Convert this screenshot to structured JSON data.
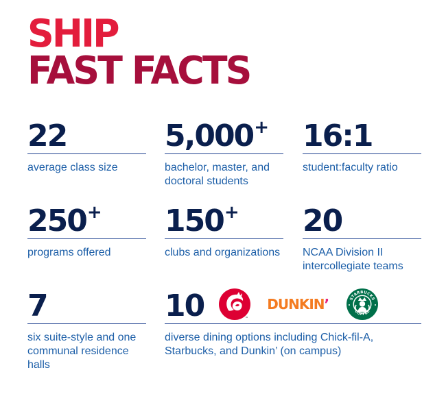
{
  "headline": {
    "line1": "SHIP",
    "line2": "FAST FACTS"
  },
  "facts": [
    {
      "number": "22",
      "plus": "",
      "description": "average class size"
    },
    {
      "number": "5,000",
      "plus": "+",
      "description": "bachelor, master, and doctoral students"
    },
    {
      "number": "16:1",
      "plus": "",
      "description": "student:faculty ratio"
    },
    {
      "number": "250",
      "plus": "+",
      "description": "programs offered"
    },
    {
      "number": "150",
      "plus": "+",
      "description": "clubs and organizations"
    },
    {
      "number": "20",
      "plus": "",
      "description": "NCAA Division II intercollegiate teams"
    },
    {
      "number": "7",
      "plus": "",
      "description": "six suite-style and one communal residence halls"
    }
  ],
  "dining": {
    "number": "10",
    "description": "diverse dining options including Chick-fil-A, Starbucks, and Dunkin’ (on campus)",
    "logos": {
      "chick": "chick-fil-a-logo",
      "dunkin_text": "DUNKIN",
      "dunkin_apostrophe": "’",
      "starbucks_top": "STARBUCKS",
      "starbucks_bottom": "COFFEE"
    }
  },
  "colors": {
    "headline_red": "#e31d3c",
    "headline_crimson": "#a60f3c",
    "number_navy": "#0a1f4d",
    "text_blue": "#1d5fa8",
    "rule_blue": "#1c3f8f",
    "chick_red": "#dd0033",
    "dunkin_orange": "#f47b20",
    "dunkin_pink": "#e5247d",
    "starbucks_green": "#00704a"
  }
}
